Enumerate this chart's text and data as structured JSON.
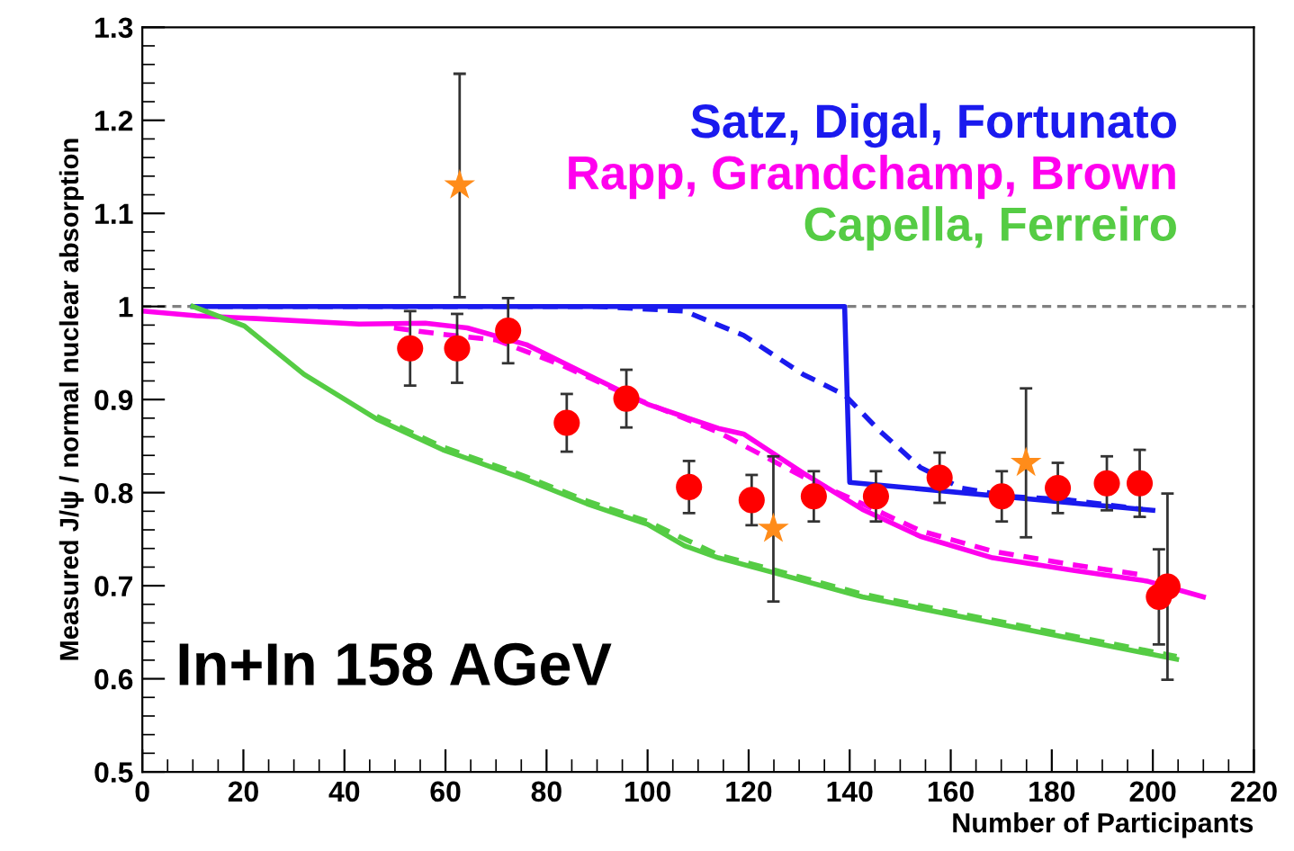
{
  "chart_data": {
    "type": "line",
    "xlabel": "Number of Participants",
    "ylabel": "Measured J/ψ / normal nuclear absorption",
    "xlim": [
      0,
      220
    ],
    "xticks": [
      0,
      20,
      40,
      60,
      80,
      100,
      120,
      140,
      160,
      180,
      200,
      220
    ],
    "ylim": [
      0.5,
      1.3
    ],
    "yticks": [
      0.5,
      0.6,
      0.7,
      0.8,
      0.9,
      1,
      1.1,
      1.2,
      1.3
    ],
    "grid": false,
    "legend": "top right",
    "ref_lines": [
      {
        "axis": "y",
        "value": 1,
        "color": "#808080",
        "line_style": "dashed"
      }
    ],
    "annotations": [
      {
        "text": "In+In 158 AGeV"
      }
    ],
    "series": [
      {
        "name": "Satz, Digal, Fortunato",
        "line_style": "solid",
        "color": "#1a1aee",
        "x": [
          10,
          139,
          140,
          200
        ],
        "values": [
          1.0,
          1.0,
          0.811,
          0.781
        ]
      },
      {
        "line_style": "dashed",
        "color": "#1a1aee",
        "x": [
          10,
          90,
          107.3,
          119,
          130.8,
          139,
          146,
          154,
          162,
          171.6,
          183.6,
          198
        ],
        "values": [
          1.0,
          1.0,
          0.995,
          0.969,
          0.927,
          0.905,
          0.866,
          0.827,
          0.805,
          0.796,
          0.792,
          0.782
        ]
      },
      {
        "name": "Rapp, Grandchamp, Brown",
        "line_style": "solid",
        "color": "#ff00ee",
        "x": [
          0,
          10.7,
          22.6,
          42.9,
          56,
          64.3,
          76,
          88,
          100,
          114,
          119,
          130.8,
          142.5,
          154,
          168.3,
          183.6,
          198.8,
          210
        ],
        "values": [
          0.995,
          0.99,
          0.987,
          0.981,
          0.982,
          0.977,
          0.959,
          0.927,
          0.895,
          0.869,
          0.863,
          0.821,
          0.782,
          0.753,
          0.73,
          0.717,
          0.705,
          0.688
        ]
      },
      {
        "line_style": "dashed",
        "color": "#ff00ee",
        "x": [
          49.8,
          59.5,
          70,
          83,
          97.6,
          114,
          130.8,
          142.5,
          154,
          168.3,
          183.6,
          198.8
        ],
        "values": [
          0.977,
          0.97,
          0.964,
          0.937,
          0.901,
          0.865,
          0.817,
          0.788,
          0.759,
          0.737,
          0.723,
          0.711
        ]
      },
      {
        "name": "Capella, Ferreiro",
        "line_style": "solid",
        "color": "#55cc44",
        "x": [
          10,
          20.2,
          32,
          46.4,
          59.5,
          76,
          88,
          100,
          107.3,
          114,
          125,
          142.5,
          160,
          177.6,
          204.7
        ],
        "values": [
          1.0,
          0.979,
          0.927,
          0.879,
          0.846,
          0.814,
          0.788,
          0.766,
          0.743,
          0.73,
          0.714,
          0.688,
          0.669,
          0.65,
          0.621
        ]
      },
      {
        "line_style": "dashed",
        "color": "#55cc44",
        "x": [
          46.4,
          59.5,
          76,
          88,
          100,
          114,
          125,
          142.5,
          160,
          177.6,
          204.7
        ],
        "values": [
          0.882,
          0.849,
          0.817,
          0.791,
          0.769,
          0.733,
          0.717,
          0.691,
          0.672,
          0.653,
          0.624
        ]
      },
      {
        "type": "scatter",
        "marker": "circle",
        "color": "#ff0000",
        "x": [
          53,
          62.3,
          72.4,
          84,
          95.8,
          108.2,
          120.6,
          132.9,
          145.2,
          157.8,
          170.1,
          181.2,
          190.9,
          197.4,
          201.2,
          202.9
        ],
        "values": [
          0.955,
          0.955,
          0.974,
          0.875,
          0.901,
          0.806,
          0.792,
          0.796,
          0.796,
          0.816,
          0.796,
          0.805,
          0.81,
          0.81,
          0.688,
          0.699
        ],
        "errors": [
          0.04,
          0.037,
          0.035,
          0.031,
          0.031,
          0.028,
          0.027,
          0.027,
          0.027,
          0.027,
          0.027,
          0.027,
          0.029,
          0.036,
          0.051,
          0.1
        ]
      },
      {
        "type": "scatter",
        "marker": "star",
        "color": "#ff8c1a",
        "x": [
          62.8,
          124.9,
          174.9
        ],
        "values": [
          1.13,
          0.761,
          0.832
        ],
        "errors": [
          0.12,
          0.078,
          0.08
        ]
      }
    ]
  }
}
